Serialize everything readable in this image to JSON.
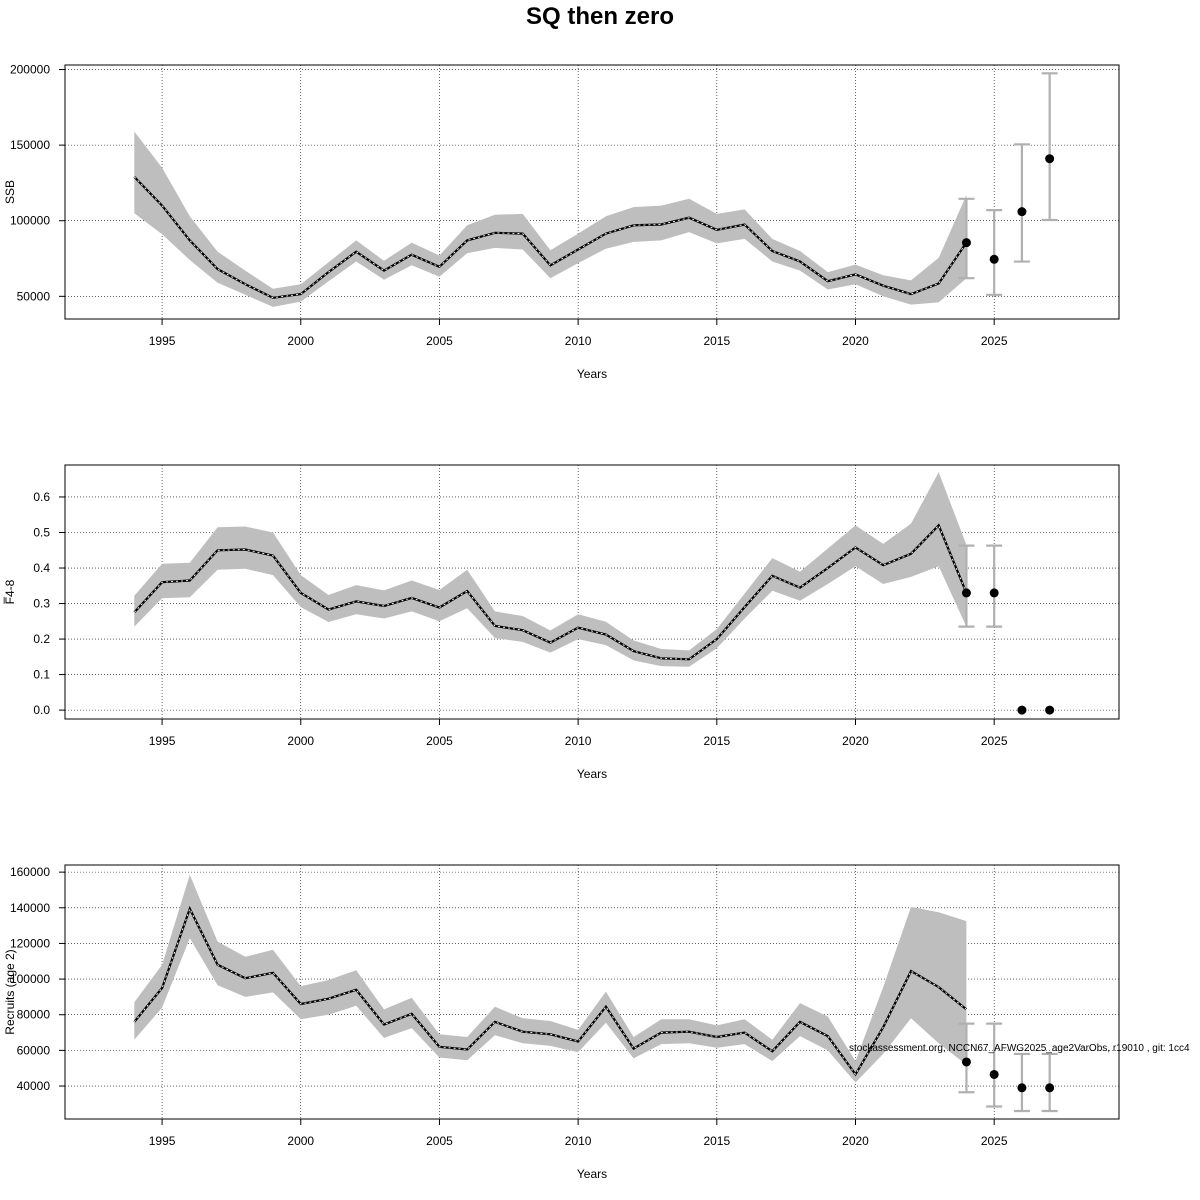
{
  "title": "SQ then zero",
  "footnote": "stockassessment.org, NCCN67_AFWG2025_age2VarObs, r19010 , git: 1cc4",
  "colors": {
    "band": "#bebebe",
    "line": "#000000",
    "errorbar": "#b0b0b0",
    "grid": "#000000"
  },
  "chart_data": [
    {
      "type": "line",
      "xlabel": "Years",
      "ylabel": "SSB",
      "xlim": [
        1991.5,
        2029.5
      ],
      "ylim": [
        35000,
        203000
      ],
      "xticks": [
        1995,
        2000,
        2005,
        2010,
        2015,
        2020,
        2025
      ],
      "yticks": [
        50000,
        100000,
        150000,
        200000
      ],
      "grid": true,
      "x": [
        1994,
        1995,
        1996,
        1997,
        1998,
        1999,
        2000,
        2001,
        2002,
        2003,
        2004,
        2005,
        2006,
        2007,
        2008,
        2009,
        2010,
        2011,
        2012,
        2013,
        2014,
        2015,
        2016,
        2017,
        2018,
        2019,
        2020,
        2021,
        2022,
        2023,
        2024
      ],
      "estimate": [
        129000,
        110000,
        87000,
        68000,
        58000,
        49000,
        51500,
        66000,
        79500,
        67000,
        77500,
        69500,
        87000,
        92000,
        91500,
        70500,
        81000,
        91500,
        97000,
        97500,
        102000,
        94000,
        97500,
        80000,
        73000,
        60000,
        64500,
        57000,
        51500,
        58500,
        85500
      ],
      "lower": [
        105000,
        91000,
        74000,
        59000,
        51000,
        43000,
        46500,
        60000,
        73000,
        61000,
        70500,
        63000,
        78500,
        82000,
        81000,
        62000,
        72000,
        81500,
        86000,
        87000,
        92500,
        85000,
        88000,
        73000,
        67000,
        54500,
        58000,
        50000,
        44500,
        46000,
        62000
      ],
      "upper": [
        159000,
        135000,
        103000,
        79500,
        67000,
        55000,
        58000,
        72500,
        87000,
        73500,
        85500,
        77000,
        97000,
        104000,
        104500,
        80500,
        91500,
        103000,
        109000,
        110000,
        114500,
        104500,
        107500,
        88000,
        80000,
        66000,
        71000,
        64000,
        60500,
        75500,
        117000
      ],
      "forecast": {
        "x": [
          2024,
          2025,
          2026,
          2027
        ],
        "median": [
          85500,
          74500,
          106000,
          141000
        ],
        "lower": [
          62000,
          51000,
          73000,
          100500
        ],
        "upper": [
          114500,
          107000,
          150500,
          197500
        ]
      }
    },
    {
      "type": "line",
      "xlabel": "Years",
      "ylabel": "F̅4-8",
      "xlim": [
        1991.5,
        2029.5
      ],
      "ylim": [
        -0.025,
        0.69
      ],
      "xticks": [
        1995,
        2000,
        2005,
        2010,
        2015,
        2020,
        2025
      ],
      "yticks": [
        0.0,
        0.1,
        0.2,
        0.3,
        0.4,
        0.5,
        0.6
      ],
      "ytick_labels": [
        "0.0",
        "0.1",
        "0.2",
        "0.3",
        "0.4",
        "0.5",
        "0.6"
      ],
      "grid": true,
      "x": [
        1994,
        1995,
        1996,
        1997,
        1998,
        1999,
        2000,
        2001,
        2002,
        2003,
        2004,
        2005,
        2006,
        2007,
        2008,
        2009,
        2010,
        2011,
        2012,
        2013,
        2014,
        2015,
        2016,
        2017,
        2018,
        2019,
        2020,
        2021,
        2022,
        2023,
        2024
      ],
      "estimate": [
        0.275,
        0.36,
        0.365,
        0.45,
        0.452,
        0.435,
        0.33,
        0.283,
        0.306,
        0.293,
        0.316,
        0.289,
        0.335,
        0.237,
        0.225,
        0.19,
        0.232,
        0.213,
        0.166,
        0.146,
        0.143,
        0.2,
        0.29,
        0.378,
        0.345,
        0.4,
        0.458,
        0.408,
        0.44,
        0.52,
        0.33
      ],
      "lower": [
        0.235,
        0.315,
        0.318,
        0.395,
        0.398,
        0.38,
        0.29,
        0.248,
        0.27,
        0.258,
        0.278,
        0.25,
        0.287,
        0.203,
        0.192,
        0.162,
        0.2,
        0.183,
        0.14,
        0.124,
        0.122,
        0.174,
        0.258,
        0.336,
        0.308,
        0.355,
        0.405,
        0.355,
        0.375,
        0.405,
        0.235
      ],
      "upper": [
        0.322,
        0.412,
        0.415,
        0.515,
        0.517,
        0.5,
        0.38,
        0.324,
        0.352,
        0.337,
        0.365,
        0.338,
        0.395,
        0.278,
        0.265,
        0.224,
        0.27,
        0.249,
        0.196,
        0.172,
        0.168,
        0.228,
        0.328,
        0.428,
        0.39,
        0.455,
        0.52,
        0.468,
        0.525,
        0.67,
        0.465
      ],
      "forecast": {
        "x": [
          2024,
          2025,
          2026,
          2027
        ],
        "median": [
          0.33,
          0.33,
          0.0,
          0.0
        ],
        "lower": [
          0.235,
          0.235,
          0.0,
          0.0
        ],
        "upper": [
          0.463,
          0.463,
          0.0,
          0.0
        ]
      }
    },
    {
      "type": "line",
      "xlabel": "Years",
      "ylabel": "Recruits (age 2)",
      "xlim": [
        1991.5,
        2029.5
      ],
      "ylim": [
        21500,
        164000
      ],
      "xticks": [
        1995,
        2000,
        2005,
        2010,
        2015,
        2020,
        2025
      ],
      "yticks": [
        40000,
        60000,
        80000,
        100000,
        120000,
        140000,
        160000
      ],
      "grid": true,
      "x": [
        1994,
        1995,
        1996,
        1997,
        1998,
        1999,
        2000,
        2001,
        2002,
        2003,
        2004,
        2005,
        2006,
        2007,
        2008,
        2009,
        2010,
        2011,
        2012,
        2013,
        2014,
        2015,
        2016,
        2017,
        2018,
        2019,
        2020,
        2021,
        2022,
        2023,
        2024
      ],
      "estimate": [
        76000,
        95000,
        139500,
        108000,
        100500,
        103500,
        86000,
        89000,
        94000,
        74500,
        80500,
        62000,
        60500,
        76000,
        70500,
        69000,
        65000,
        84500,
        61000,
        70000,
        70500,
        67500,
        70000,
        59500,
        76000,
        68000,
        46500,
        73000,
        104500,
        95500,
        83000
      ],
      "lower": [
        66000,
        84000,
        123000,
        96500,
        90000,
        92500,
        77500,
        80000,
        85000,
        67000,
        72500,
        56000,
        54500,
        68500,
        64000,
        62500,
        59000,
        75500,
        55500,
        63500,
        64000,
        61500,
        63500,
        54000,
        68000,
        60000,
        42000,
        58000,
        78000,
        64000,
        52000
      ],
      "upper": [
        87000,
        108000,
        158500,
        121000,
        112500,
        116500,
        96000,
        99500,
        105000,
        83000,
        89500,
        69000,
        67500,
        84500,
        78000,
        76500,
        71500,
        93000,
        67500,
        77500,
        77500,
        74000,
        77500,
        66000,
        86500,
        79000,
        54000,
        95500,
        140500,
        137500,
        132500
      ],
      "forecast": {
        "x": [
          2024,
          2025,
          2026,
          2027
        ],
        "median": [
          53500,
          46500,
          39000,
          39000
        ],
        "lower": [
          36500,
          28500,
          26000,
          26000
        ],
        "upper": [
          75000,
          75000,
          58000,
          58000
        ]
      }
    }
  ]
}
